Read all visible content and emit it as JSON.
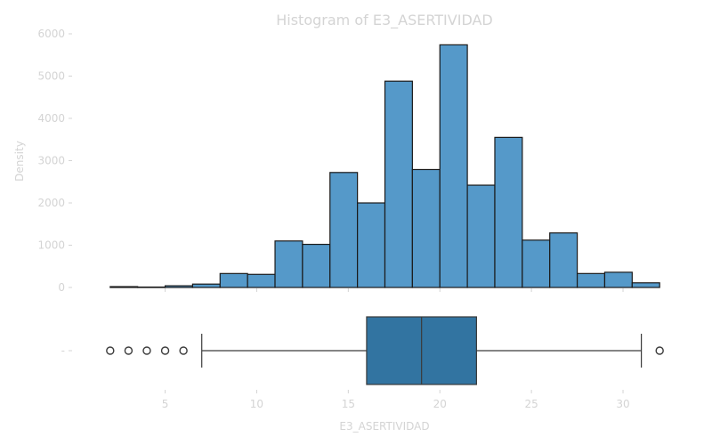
{
  "chart_data": [
    {
      "type": "bar",
      "subtype": "histogram",
      "title": "Histogram of E3_ASERTIVIDAD",
      "xlabel": "",
      "ylabel": "Density",
      "ylim": [
        0,
        6000
      ],
      "yticks": [
        0,
        1000,
        2000,
        3000,
        4000,
        5000,
        6000
      ],
      "xlim": [
        0.6,
        33.4
      ],
      "bin_start": 2,
      "bin_width": 1.5,
      "values": [
        20,
        10,
        40,
        80,
        330,
        310,
        1100,
        1020,
        2720,
        2000,
        4880,
        2790,
        5740,
        2420,
        3550,
        1120,
        1290,
        330,
        360,
        110
      ],
      "grid": false
    },
    {
      "type": "box",
      "xlabel": "E3_ASERTIVIDAD",
      "xlim": [
        0.6,
        33.4
      ],
      "xticks": [
        5,
        10,
        15,
        20,
        25,
        30
      ],
      "ytick_label": "-",
      "whisker_low": 7,
      "q1": 16,
      "median": 19,
      "q3": 22,
      "whisker_high": 31,
      "outliers": [
        2,
        3,
        4,
        5,
        6,
        32
      ],
      "grid": false
    }
  ]
}
